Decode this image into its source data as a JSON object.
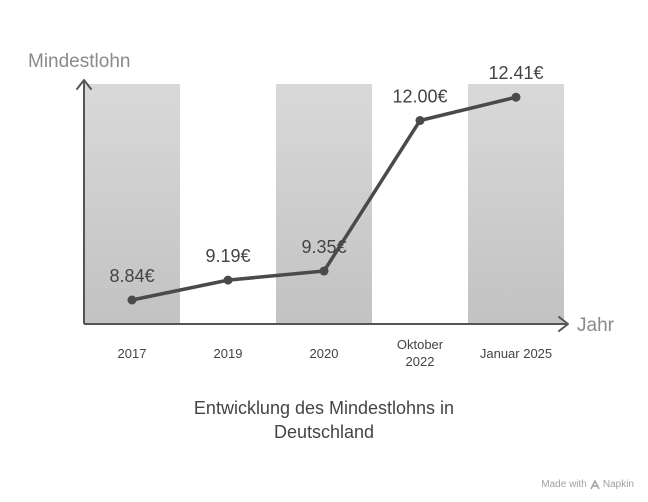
{
  "chart_data": {
    "type": "line",
    "categories": [
      "2017",
      "2019",
      "2020",
      "Oktober 2022",
      "Januar 2025"
    ],
    "category_lines": [
      [
        "2017"
      ],
      [
        "2019"
      ],
      [
        "2020"
      ],
      [
        "Oktober",
        "2022"
      ],
      [
        "Januar 2025"
      ]
    ],
    "values": [
      8.84,
      9.19,
      9.35,
      12.0,
      12.41
    ],
    "data_labels": [
      "8.84€",
      "9.19€",
      "9.35€",
      "12.00€",
      "12.41€"
    ],
    "ylabel": "Mindestlohn",
    "xlabel": "Jahr",
    "title_lines": [
      "Entwicklung des Mindestlohns in",
      "Deutschland"
    ],
    "grid": false,
    "alternating_band_columns": true
  },
  "colors": {
    "line": "#4a4a4a",
    "band_top": "#d9d9d9",
    "band_bottom": "#c2c2c2",
    "axis": "#555555",
    "axis_title": "#8a8a8a"
  },
  "watermark": {
    "made_with": "Made with",
    "brand": "Napkin"
  }
}
